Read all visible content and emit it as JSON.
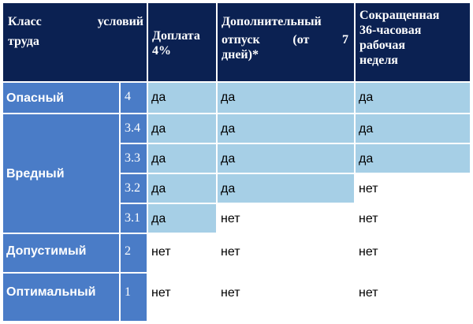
{
  "table": {
    "headers": {
      "class_word1": "Класс",
      "class_word2": "условий",
      "class_word3": "труда",
      "bonus_line1": "Доплата",
      "bonus_line2": "4%",
      "leave_line1": "Дополнительный",
      "leave_word1": "отпуск",
      "leave_word2": "(от",
      "leave_word3": "7",
      "leave_line3": "дней)*",
      "week_line1": "Сокращенная",
      "week_line2": "36-часовая",
      "week_line3": "рабочая",
      "week_line4": "неделя"
    },
    "rows": [
      {
        "category": "Опасный",
        "subclass": "4",
        "bonus": "да",
        "leave": "да",
        "week": "да"
      },
      {
        "category": "Вредный",
        "subclass": "3.4",
        "bonus": "да",
        "leave": "да",
        "week": "да"
      },
      {
        "subclass": "3.3",
        "bonus": "да",
        "leave": "да",
        "week": "да"
      },
      {
        "subclass": "3.2",
        "bonus": "да",
        "leave": "да",
        "week": "нет"
      },
      {
        "subclass": "3.1",
        "bonus": "да",
        "leave": "нет",
        "week": "нет"
      },
      {
        "category": "Допустимый",
        "subclass": "2",
        "bonus": "нет",
        "leave": "нет",
        "week": "нет"
      },
      {
        "category": "Оптимальный",
        "subclass": "1",
        "bonus": "нет",
        "leave": "нет",
        "week": "нет"
      }
    ]
  },
  "colors": {
    "header_bg": "#0b2152",
    "category_bg": "#4a7cc7",
    "yes_bg": "#a6cfe6",
    "no_bg": "#ffffff"
  }
}
